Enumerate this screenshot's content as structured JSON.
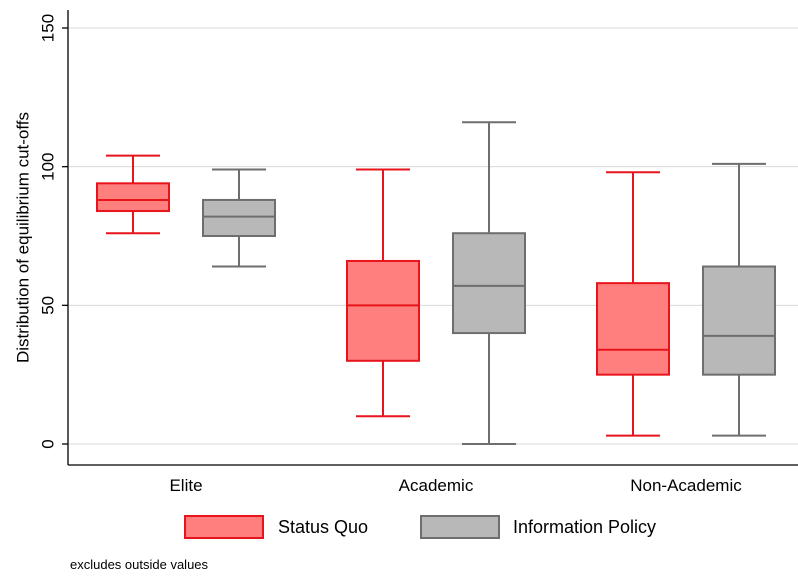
{
  "chart_data": {
    "type": "boxplot",
    "title": "",
    "xlabel": "",
    "ylabel": "Distribution of equilibrium cut-offs",
    "ylim": [
      0,
      150
    ],
    "yticks": [
      0,
      50,
      100,
      150
    ],
    "grid": true,
    "categories": [
      "Elite",
      "Academic",
      "Non-Academic"
    ],
    "series": [
      {
        "name": "Status Quo",
        "fill": "#ff7f7f",
        "stroke": "#e8141c",
        "boxes": [
          {
            "min": 76,
            "q1": 84,
            "median": 88,
            "q3": 94,
            "max": 104
          },
          {
            "min": 10,
            "q1": 30,
            "median": 50,
            "q3": 66,
            "max": 99
          },
          {
            "min": 3,
            "q1": 25,
            "median": 34,
            "q3": 58,
            "max": 98
          }
        ]
      },
      {
        "name": "Information Policy",
        "fill": "#b8b8b8",
        "stroke": "#6e6e6e",
        "boxes": [
          {
            "min": 64,
            "q1": 75,
            "median": 82,
            "q3": 88,
            "max": 99
          },
          {
            "min": 0,
            "q1": 40,
            "median": 57,
            "q3": 76,
            "max": 116
          },
          {
            "min": 3,
            "q1": 25,
            "median": 39,
            "q3": 64,
            "max": 101
          }
        ]
      }
    ],
    "legend_position": "bottom",
    "note": "excludes outside values"
  }
}
